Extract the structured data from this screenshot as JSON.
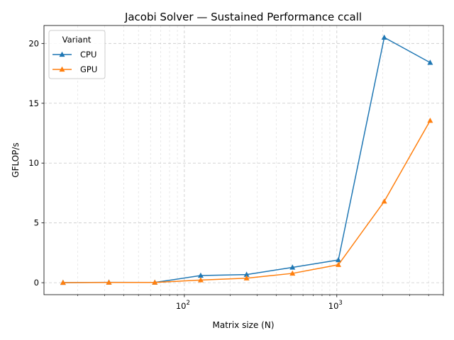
{
  "chart_data": {
    "type": "line",
    "title": "Jacobi Solver — Sustained Performance ccall",
    "xlabel": "Matrix size (N)",
    "ylabel": "GFLOP/s",
    "xscale": "log",
    "x": [
      16,
      32,
      64,
      128,
      256,
      512,
      1024,
      2048,
      4096
    ],
    "xlim": [
      12,
      5000
    ],
    "ylim": [
      -1.0,
      21.5
    ],
    "yticks": [
      0,
      5,
      10,
      15,
      20
    ],
    "xticks": [
      {
        "value": 100,
        "base": "10",
        "exp": "2"
      },
      {
        "value": 1000,
        "base": "10",
        "exp": "3"
      }
    ],
    "grid": true,
    "legend": {
      "title": "Variant",
      "position": "top-left"
    },
    "series": [
      {
        "name": "CPU",
        "color": "#1f77b4",
        "marker": "triangle-up",
        "values": [
          0.01,
          0.03,
          0.02,
          0.6,
          0.68,
          1.28,
          1.9,
          20.5,
          18.4
        ]
      },
      {
        "name": "GPU",
        "color": "#ff7f0e",
        "marker": "triangle-up",
        "values": [
          0.01,
          0.02,
          0.02,
          0.22,
          0.38,
          0.78,
          1.5,
          6.8,
          13.55
        ]
      }
    ]
  }
}
